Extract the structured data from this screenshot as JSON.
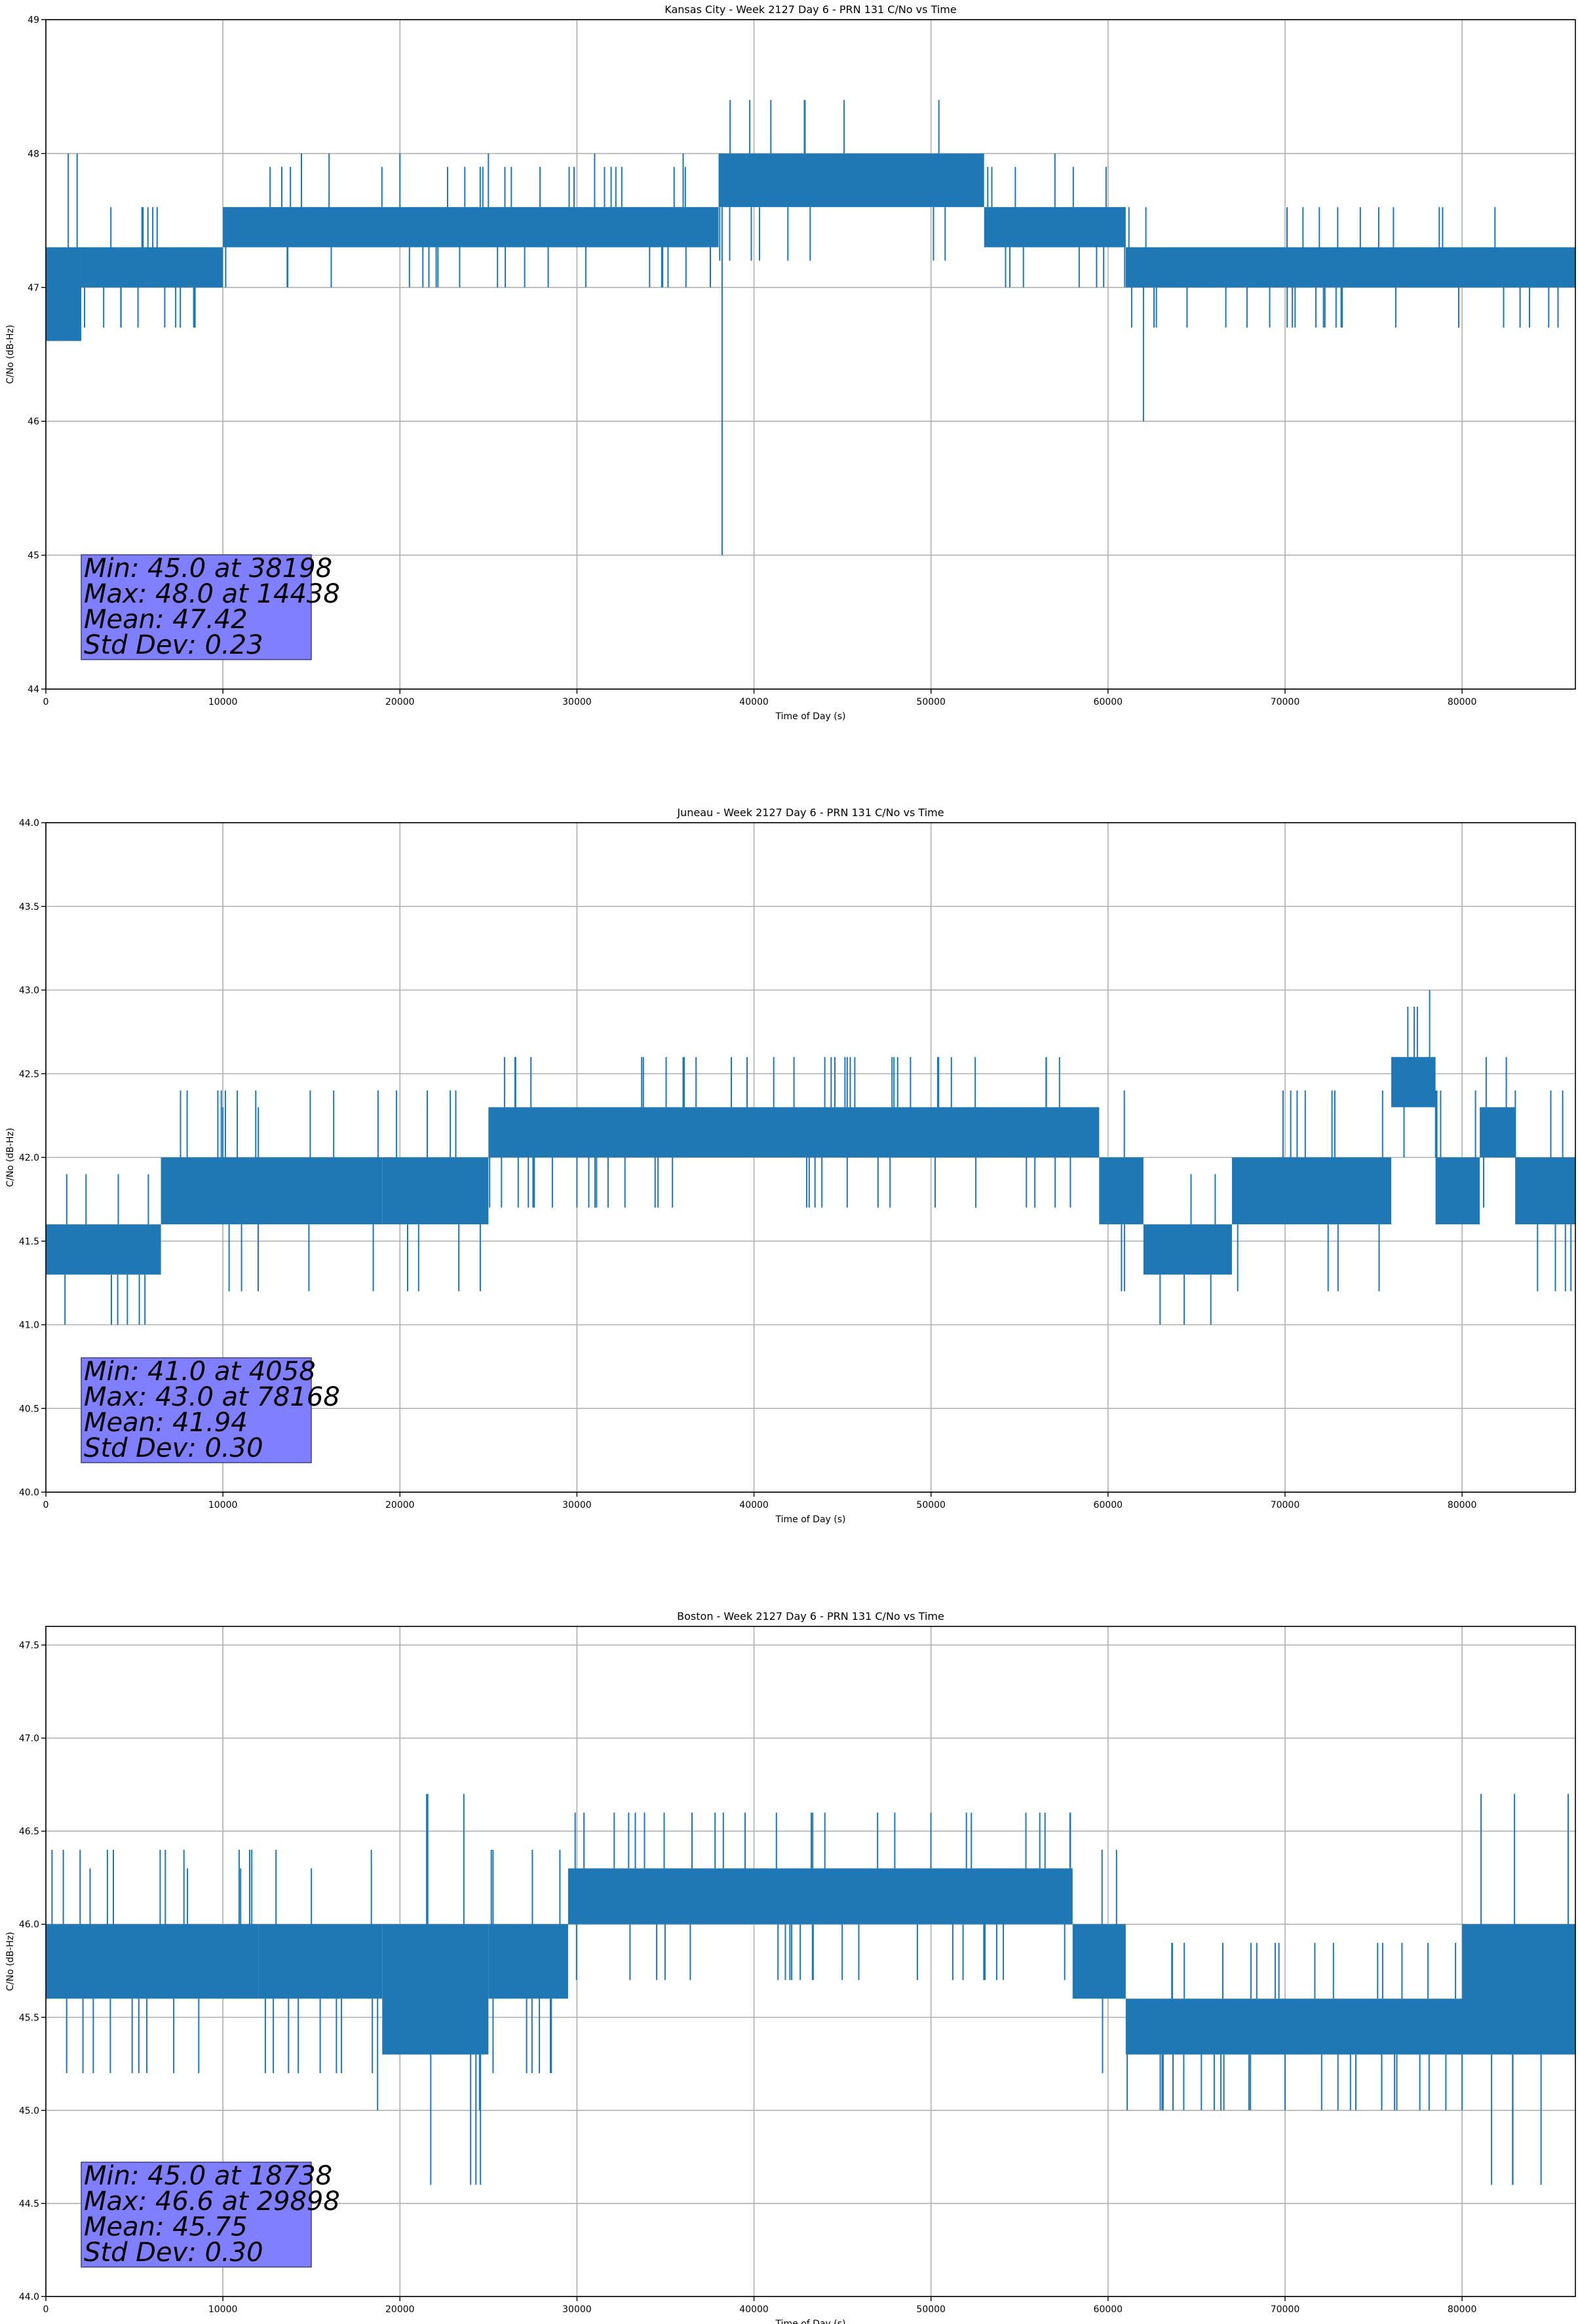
{
  "chart_data": [
    {
      "type": "line",
      "title": "Kansas City - Week 2127 Day 6 - PRN 131 C/No vs Time",
      "xlabel": "Time of Day (s)",
      "ylabel": "C/No (dB-Hz)",
      "xlim": [
        0,
        86400
      ],
      "ylim": [
        44,
        49
      ],
      "xticks": [
        0,
        10000,
        20000,
        30000,
        40000,
        50000,
        60000,
        70000,
        80000
      ],
      "yticks": [
        "44",
        "45",
        "46",
        "47",
        "48",
        "49"
      ],
      "grid": true,
      "color": "#1f77b4",
      "series": [
        {
          "segments": [
            {
              "x": [
                0,
                2000
              ],
              "y": [
                46.6,
                47.3
              ],
              "base": 47.0
            },
            {
              "x": [
                2000,
                10000
              ],
              "y": [
                47.0,
                47.3
              ],
              "base": 47.0
            },
            {
              "x": [
                10000,
                38000
              ],
              "y": [
                47.3,
                47.6
              ],
              "base": 47.3
            },
            {
              "x": [
                38000,
                53000
              ],
              "y": [
                47.6,
                48.0
              ],
              "base": 47.6
            },
            {
              "x": [
                53000,
                61000
              ],
              "y": [
                47.3,
                47.6
              ],
              "base": 47.3
            },
            {
              "x": [
                61000,
                86400
              ],
              "y": [
                47.0,
                47.3
              ],
              "base": 47.0
            }
          ],
          "spikes": [
            {
              "x": 38198,
              "y": 45.0
            },
            {
              "x": 62000,
              "y": 46.0
            },
            {
              "x": 14438,
              "y": 48.0
            },
            {
              "x": 16000,
              "y": 48.0
            },
            {
              "x": 20000,
              "y": 48.0
            },
            {
              "x": 25000,
              "y": 48.0
            },
            {
              "x": 31000,
              "y": 48.0
            },
            {
              "x": 36000,
              "y": 48.0
            },
            {
              "x": 57000,
              "y": 48.0
            }
          ]
        }
      ],
      "stats": {
        "min": "Min: 45.0 at 38198",
        "max": "Max: 48.0 at 14438",
        "mean": "Mean: 47.42",
        "std": "Std Dev: 0.23"
      }
    },
    {
      "type": "line",
      "title": "Juneau - Week 2127 Day 6 - PRN 131 C/No vs Time",
      "xlabel": "Time of Day (s)",
      "ylabel": "C/No (dB-Hz)",
      "xlim": [
        0,
        86400
      ],
      "ylim": [
        40.0,
        44.0
      ],
      "xticks": [
        0,
        10000,
        20000,
        30000,
        40000,
        50000,
        60000,
        70000,
        80000
      ],
      "yticks": [
        "40.0",
        "40.5",
        "41.0",
        "41.5",
        "42.0",
        "42.5",
        "43.0",
        "43.5",
        "44.0"
      ],
      "grid": true,
      "color": "#1f77b4",
      "series": [
        {
          "segments": [
            {
              "x": [
                0,
                6500
              ],
              "y": [
                41.3,
                41.6
              ],
              "base": 41.3
            },
            {
              "x": [
                6500,
                19000
              ],
              "y": [
                41.6,
                42.0
              ],
              "base": 41.6
            },
            {
              "x": [
                19000,
                25000
              ],
              "y": [
                41.6,
                42.0
              ],
              "base": 41.6
            },
            {
              "x": [
                25000,
                59500
              ],
              "y": [
                42.0,
                42.3
              ],
              "base": 42.0
            },
            {
              "x": [
                59500,
                62000
              ],
              "y": [
                41.6,
                42.0
              ],
              "base": 41.6
            },
            {
              "x": [
                62000,
                67000
              ],
              "y": [
                41.3,
                41.6
              ],
              "base": 41.3
            },
            {
              "x": [
                67000,
                76000
              ],
              "y": [
                41.6,
                42.0
              ],
              "base": 41.6
            },
            {
              "x": [
                76000,
                78500
              ],
              "y": [
                42.3,
                42.6
              ],
              "base": 42.3
            },
            {
              "x": [
                78500,
                81000
              ],
              "y": [
                41.6,
                42.0
              ],
              "base": 41.6
            },
            {
              "x": [
                81000,
                83000
              ],
              "y": [
                42.0,
                42.3
              ],
              "base": 42.0
            },
            {
              "x": [
                83000,
                86400
              ],
              "y": [
                41.6,
                42.0
              ],
              "base": 41.6
            }
          ],
          "spikes": [
            {
              "x": 4058,
              "y": 41.0
            },
            {
              "x": 78168,
              "y": 43.0
            },
            {
              "x": 10000,
              "y": 42.3
            },
            {
              "x": 12000,
              "y": 42.3
            },
            {
              "x": 26500,
              "y": 42.6
            },
            {
              "x": 36000,
              "y": 42.6
            },
            {
              "x": 44000,
              "y": 42.6
            },
            {
              "x": 52500,
              "y": 42.6
            },
            {
              "x": 56500,
              "y": 42.6
            },
            {
              "x": 82500,
              "y": 42.6
            }
          ]
        }
      ],
      "stats": {
        "min": "Min: 41.0 at 4058",
        "max": "Max: 43.0 at 78168",
        "mean": "Mean: 41.94",
        "std": "Std Dev: 0.30"
      }
    },
    {
      "type": "line",
      "title": "Boston - Week 2127 Day 6 - PRN 131 C/No vs Time",
      "xlabel": "Time of Day (s)",
      "ylabel": "C/No (dB-Hz)",
      "xlim": [
        0,
        86400
      ],
      "ylim": [
        44.0,
        47.6
      ],
      "xticks": [
        0,
        10000,
        20000,
        30000,
        40000,
        50000,
        60000,
        70000,
        80000
      ],
      "yticks": [
        "44.0",
        "44.5",
        "45.0",
        "45.5",
        "46.0",
        "46.5",
        "47.0",
        "47.5"
      ],
      "grid": true,
      "color": "#1f77b4",
      "series": [
        {
          "segments": [
            {
              "x": [
                0,
                12000
              ],
              "y": [
                45.6,
                46.0
              ],
              "base": 45.6
            },
            {
              "x": [
                12000,
                19000
              ],
              "y": [
                45.6,
                46.0
              ],
              "base": 45.6
            },
            {
              "x": [
                19000,
                25000
              ],
              "y": [
                45.3,
                46.0
              ],
              "base": 45.6
            },
            {
              "x": [
                25000,
                29500
              ],
              "y": [
                45.6,
                46.0
              ],
              "base": 45.6
            },
            {
              "x": [
                29500,
                58000
              ],
              "y": [
                46.0,
                46.3
              ],
              "base": 46.0
            },
            {
              "x": [
                58000,
                61000
              ],
              "y": [
                45.6,
                46.0
              ],
              "base": 45.6
            },
            {
              "x": [
                61000,
                80000
              ],
              "y": [
                45.3,
                45.6
              ],
              "base": 45.3
            },
            {
              "x": [
                80000,
                86400
              ],
              "y": [
                45.3,
                46.0
              ],
              "base": 45.6
            }
          ],
          "spikes": [
            {
              "x": 18738,
              "y": 45.0
            },
            {
              "x": 29898,
              "y": 46.6
            },
            {
              "x": 2500,
              "y": 46.3
            },
            {
              "x": 8000,
              "y": 46.3
            },
            {
              "x": 11000,
              "y": 46.3
            },
            {
              "x": 15000,
              "y": 46.3
            },
            {
              "x": 24500,
              "y": 45.0
            },
            {
              "x": 36500,
              "y": 46.6
            },
            {
              "x": 39500,
              "y": 46.6
            },
            {
              "x": 66000,
              "y": 45.0
            },
            {
              "x": 70000,
              "y": 45.0
            },
            {
              "x": 74000,
              "y": 45.0
            },
            {
              "x": 80000,
              "y": 45.0
            }
          ]
        }
      ],
      "stats": {
        "min": "Min: 45.0 at 18738",
        "max": "Max: 46.6 at 29898",
        "mean": "Mean: 45.75",
        "std": "Std Dev: 0.30"
      }
    }
  ]
}
